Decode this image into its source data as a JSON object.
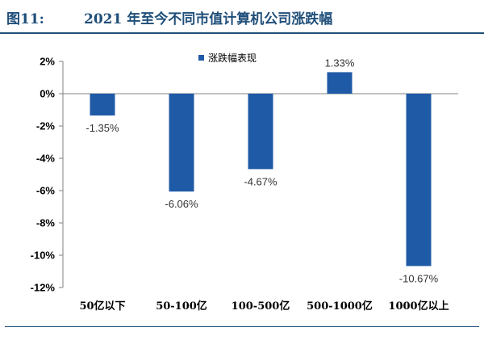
{
  "figure": {
    "label": "图11:",
    "title": "2021 年至今不同市值计算机公司涨跌幅"
  },
  "chart_data": {
    "type": "bar",
    "title": "2021 年至今不同市值计算机公司涨跌幅",
    "xlabel": "",
    "ylabel": "",
    "categories": [
      "50亿以下",
      "50-100亿",
      "100-500亿",
      "500-1000亿",
      "1000亿以上"
    ],
    "series": [
      {
        "name": "涨跌幅表现",
        "values": [
          -1.35,
          -6.06,
          -4.67,
          1.33,
          -10.67
        ]
      }
    ],
    "data_labels": [
      "-1.35%",
      "-6.06%",
      "-4.67%",
      "1.33%",
      "-10.67%"
    ],
    "y_ticks": [
      2,
      0,
      -2,
      -4,
      -6,
      -8,
      -10,
      -12
    ],
    "y_tick_labels": [
      "2%",
      "0%",
      "-2%",
      "-4%",
      "-6%",
      "-8%",
      "-10%",
      "-12%"
    ],
    "ylim": [
      -12,
      2
    ],
    "grid": false,
    "legend_position": "top",
    "bar_color": "#1f5aa6"
  }
}
